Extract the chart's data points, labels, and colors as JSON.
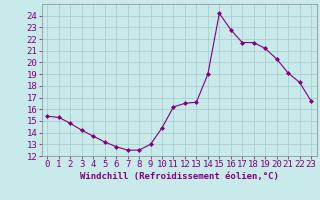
{
  "title": "",
  "xlabel": "Windchill (Refroidissement éolien,°C)",
  "x": [
    0,
    1,
    2,
    3,
    4,
    5,
    6,
    7,
    8,
    9,
    10,
    11,
    12,
    13,
    14,
    15,
    16,
    17,
    18,
    19,
    20,
    21,
    22,
    23
  ],
  "y": [
    15.4,
    15.3,
    14.8,
    14.2,
    13.7,
    13.2,
    12.8,
    12.5,
    12.5,
    13.0,
    14.4,
    16.2,
    16.5,
    16.6,
    19.0,
    24.2,
    22.8,
    21.7,
    21.7,
    21.2,
    20.3,
    19.1,
    18.3,
    16.7
  ],
  "ylim": [
    12,
    25
  ],
  "yticks": [
    12,
    13,
    14,
    15,
    16,
    17,
    18,
    19,
    20,
    21,
    22,
    23,
    24
  ],
  "line_color": "#800080",
  "marker": "D",
  "bg_color": "#c8eaea",
  "grid_color": "#a8c8c8",
  "xlabel_color": "#800080",
  "tick_color": "#800080",
  "tick_fontsize": 6.5,
  "xlabel_fontsize": 6.5
}
